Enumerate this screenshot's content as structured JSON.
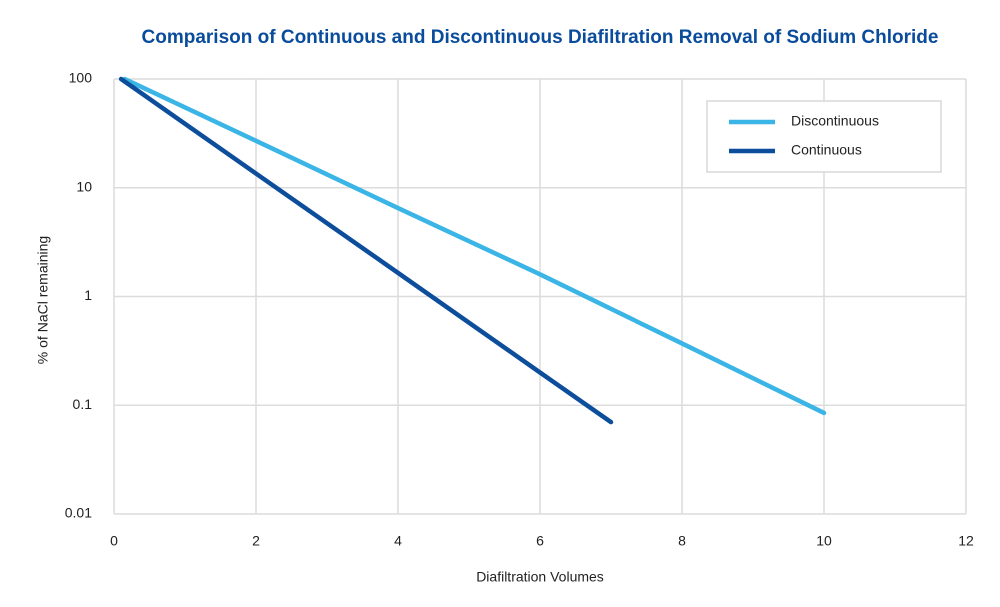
{
  "chart_data": {
    "type": "line",
    "title": "Comparison of Continuous and Discontinuous Diafiltration Removal of Sodium Chloride",
    "x_label": "Diafiltration Volumes",
    "y_label": "% of NaCl remaining",
    "log_y": true,
    "grid": true,
    "legend": "top-right",
    "xlim": [
      0,
      12
    ],
    "xticks": [
      0,
      2,
      4,
      6,
      8,
      10,
      12
    ],
    "ylim": [
      0.01,
      100
    ],
    "yticks": [
      100,
      10,
      1,
      0.1,
      0.01
    ],
    "series": [
      {
        "name": "Discontinuous",
        "color": "#3bb5e6",
        "x": [
          0.15,
          2,
          4,
          6,
          8,
          10
        ],
        "values": [
          100,
          27,
          6.5,
          1.6,
          0.37,
          0.085
        ]
      },
      {
        "name": "Continuous",
        "color": "#0d4e9c",
        "x": [
          0.1,
          2,
          4,
          6,
          7
        ],
        "values": [
          100,
          13.5,
          1.65,
          0.2,
          0.07
        ]
      }
    ]
  }
}
